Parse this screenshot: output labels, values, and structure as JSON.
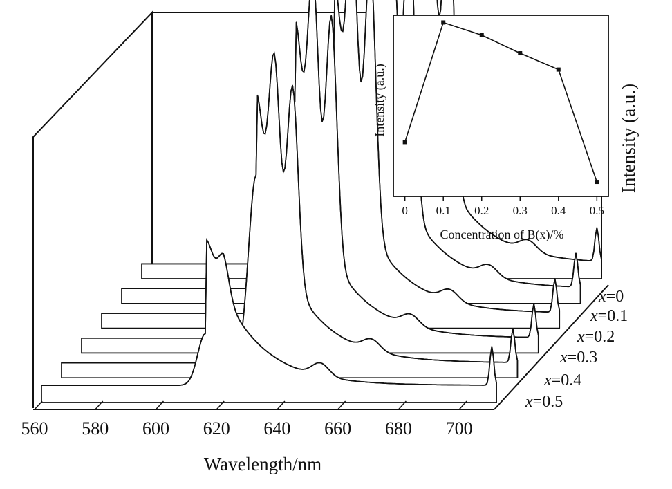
{
  "chart_data": [
    {
      "type": "line",
      "title": "",
      "xlabel": "Wavelength/nm",
      "ylabel": "Intensity (a.u.)",
      "x_ticks": [
        560,
        580,
        600,
        620,
        640,
        660,
        680,
        700
      ],
      "xlim": [
        560,
        710
      ],
      "series": [
        {
          "name": "x=0",
          "peaks": {
            "x": [
              648,
              654,
              660
            ],
            "y": [
              0.75,
              0.86,
              0.8
            ]
          }
        },
        {
          "name": "x=0.1",
          "peaks": {
            "x": [
              642,
              648,
              654
            ],
            "y": [
              0.72,
              0.82,
              0.76
            ]
          }
        },
        {
          "name": "x=0.2",
          "peaks": {
            "x": [
              636,
              642,
              648
            ],
            "y": [
              0.68,
              0.79,
              0.72
            ]
          }
        },
        {
          "name": "x=0.3",
          "peaks": {
            "x": [
              630,
              636,
              642
            ],
            "y": [
              0.63,
              0.72,
              0.64
            ]
          }
        },
        {
          "name": "x=0.4",
          "peaks": {
            "x": [
              624,
              630,
              636
            ],
            "y": [
              0.5,
              0.58,
              0.52
            ]
          }
        },
        {
          "name": "x=0.5",
          "peaks": {
            "x": [
              614,
              620
            ],
            "y": [
              0.12,
              0.08
            ]
          }
        }
      ]
    },
    {
      "type": "line",
      "title": "",
      "xlabel": "Concentration of B(x)/%",
      "ylabel": "Intensity (a.u.)",
      "x": [
        0,
        0.1,
        0.2,
        0.3,
        0.4,
        0.5
      ],
      "x_ticks": [
        "0",
        "0.1",
        "0.2",
        "0.3",
        "0.4",
        "0.5"
      ],
      "values": [
        0.3,
        0.96,
        0.89,
        0.79,
        0.7,
        0.08
      ],
      "xlim": [
        -0.03,
        0.53
      ],
      "ylim": [
        0,
        1
      ]
    }
  ]
}
